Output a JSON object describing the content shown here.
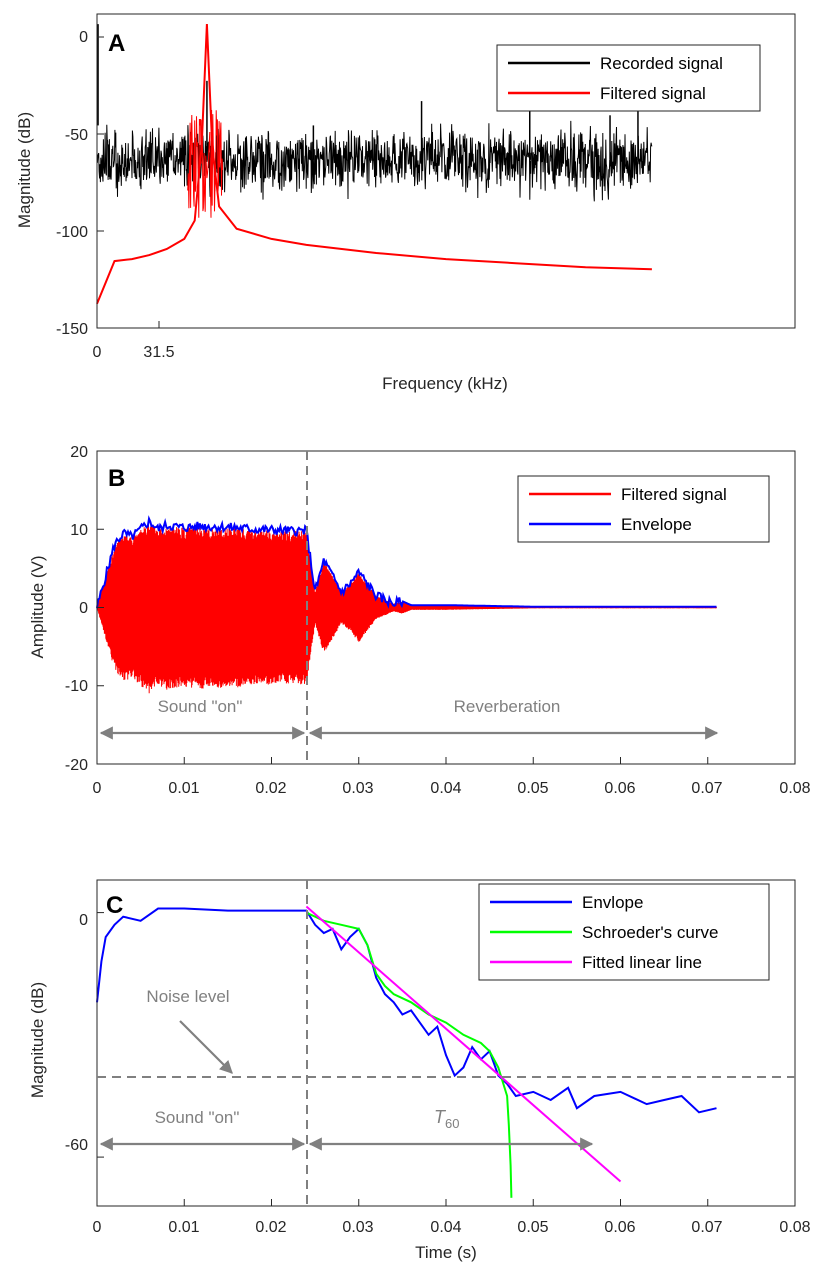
{
  "chart_data": [
    {
      "panel": "A",
      "type": "line",
      "xlabel": "Frequency (kHz)",
      "ylabel": "Magnitude (dB)",
      "xlim": [
        0,
        200
      ],
      "ylim": [
        -150,
        5
      ],
      "xticks": [
        0,
        31.5
      ],
      "xtick_labels": [
        "0",
        "31.5"
      ],
      "yticks": [
        0,
        -50,
        -100,
        -150
      ],
      "ytick_labels": [
        "0",
        "-50",
        "-100",
        "-150"
      ],
      "legend": {
        "position": "top-right",
        "entries": [
          "Recorded signal",
          "Filtered signal"
        ]
      },
      "series": [
        {
          "name": "Recorded signal",
          "color": "#000000",
          "note": "broadband noise floor",
          "band": {
            "x_start": 0,
            "x_end": 159,
            "center": -67,
            "low": -80,
            "high": -52
          },
          "spikes": [
            {
              "x": 31.5,
              "y": -28
            },
            {
              "x": 62,
              "y": -50
            },
            {
              "x": 93,
              "y": -38
            },
            {
              "x": 124,
              "y": -20
            },
            {
              "x": 147,
              "y": -45
            },
            {
              "x": 155,
              "y": -42
            }
          ]
        },
        {
          "name": "Filtered signal",
          "color": "#ff0000",
          "x": [
            0,
            5,
            10,
            15,
            20,
            25,
            28,
            30,
            31.5,
            33,
            35,
            40,
            50,
            60,
            80,
            100,
            120,
            140,
            159
          ],
          "y": [
            -138,
            -117,
            -116,
            -114,
            -111,
            -106,
            -97,
            -60,
            0,
            -60,
            -90,
            -101,
            -106,
            -109,
            -113,
            -116,
            -118,
            -120,
            -121
          ]
        }
      ]
    },
    {
      "panel": "B",
      "type": "line",
      "xlabel": "",
      "ylabel": "Amplitude (V)",
      "xlim": [
        0,
        0.08
      ],
      "ylim": [
        -20,
        20
      ],
      "xticks": [
        0,
        0.01,
        0.02,
        0.03,
        0.04,
        0.05,
        0.06,
        0.07,
        0.08
      ],
      "xtick_labels": [
        "0",
        "0.01",
        "0.02",
        "0.03",
        "0.04",
        "0.05",
        "0.06",
        "0.07",
        "0.08"
      ],
      "yticks": [
        20,
        10,
        0,
        -10,
        -20
      ],
      "ytick_labels": [
        "20",
        "10",
        "0",
        "-10",
        "-20"
      ],
      "legend": {
        "position": "top-right",
        "entries": [
          "Filtered signal",
          "Envelope"
        ]
      },
      "series": [
        {
          "name": "Envelope",
          "color": "#0000ff",
          "x": [
            0,
            0.001,
            0.002,
            0.003,
            0.004,
            0.005,
            0.006,
            0.007,
            0.008,
            0.01,
            0.012,
            0.014,
            0.016,
            0.018,
            0.02,
            0.022,
            0.024,
            0.025,
            0.026,
            0.027,
            0.028,
            0.029,
            0.03,
            0.031,
            0.032,
            0.033,
            0.034,
            0.035,
            0.036,
            0.038,
            0.04,
            0.045,
            0.05,
            0.06,
            0.071
          ],
          "y": [
            0,
            4,
            8,
            9.5,
            9,
            10,
            11,
            10,
            10.5,
            10.2,
            10.4,
            10.3,
            10.2,
            10,
            9.9,
            9.8,
            9.8,
            2,
            6,
            4,
            2,
            3,
            4.5,
            3,
            1.5,
            1,
            0.5,
            0.8,
            0.3,
            0.3,
            0.3,
            0.2,
            0.1,
            0.1,
            0.1
          ]
        },
        {
          "name": "Filtered signal",
          "color": "#ff0000",
          "note": "oscillation symmetric about zero, bounded by the envelope"
        }
      ],
      "annotations": [
        {
          "text": "Sound \"on\"",
          "x_from": 0,
          "x_to": 0.024,
          "y": -16
        },
        {
          "text": "Reverberation",
          "x_from": 0.024,
          "x_to": 0.071,
          "y": -16
        }
      ],
      "reference_lines": [
        {
          "orientation": "vertical",
          "x": 0.024,
          "style": "dashed"
        }
      ]
    },
    {
      "panel": "C",
      "type": "line",
      "xlabel": "Time (s)",
      "ylabel": "Magnitude (dB)",
      "xlim": [
        0,
        0.08
      ],
      "ylim": [
        -72,
        8
      ],
      "xticks": [
        0,
        0.01,
        0.02,
        0.03,
        0.04,
        0.05,
        0.06,
        0.07,
        0.08
      ],
      "xtick_labels": [
        "0",
        "0.01",
        "0.02",
        "0.03",
        "0.04",
        "0.05",
        "0.06",
        "0.07",
        "0.08"
      ],
      "yticks": [
        0,
        -60
      ],
      "ytick_labels": [
        "0",
        "-60"
      ],
      "legend": {
        "position": "top-right",
        "entries": [
          "Envlope",
          "Schroeder's curve",
          "Fitted linear line"
        ]
      },
      "series": [
        {
          "name": "Envlope",
          "color": "#0000ff",
          "x": [
            0,
            0.0005,
            0.001,
            0.002,
            0.003,
            0.005,
            0.007,
            0.01,
            0.015,
            0.02,
            0.024,
            0.025,
            0.026,
            0.027,
            0.028,
            0.029,
            0.03,
            0.031,
            0.032,
            0.033,
            0.034,
            0.035,
            0.036,
            0.037,
            0.038,
            0.039,
            0.04,
            0.041,
            0.042,
            0.043,
            0.044,
            0.045,
            0.046,
            0.047,
            0.048,
            0.05,
            0.052,
            0.054,
            0.055,
            0.057,
            0.06,
            0.063,
            0.065,
            0.067,
            0.069,
            0.071
          ],
          "y": [
            -22,
            -12,
            -6,
            -3,
            -1,
            -2,
            1,
            1,
            0.5,
            0.5,
            0.5,
            -3,
            -5,
            -4,
            -9,
            -6,
            -4,
            -8,
            -16,
            -20,
            -22,
            -25,
            -24,
            -27,
            -30,
            -28,
            -35,
            -40,
            -38,
            -33,
            -36,
            -34,
            -40,
            -42,
            -45,
            -44,
            -46,
            -43,
            -48,
            -45,
            -44,
            -47,
            -46,
            -45,
            -49,
            -48
          ]
        },
        {
          "name": "Schroeder's curve",
          "color": "#00ff00",
          "x": [
            0.024,
            0.026,
            0.028,
            0.03,
            0.031,
            0.032,
            0.033,
            0.034,
            0.036,
            0.038,
            0.04,
            0.042,
            0.044,
            0.045,
            0.046,
            0.047,
            0.0472,
            0.0474,
            0.0475
          ],
          "y": [
            0,
            -2,
            -3,
            -4,
            -8,
            -15,
            -18,
            -20,
            -22,
            -25,
            -27,
            -30,
            -32,
            -34,
            -38,
            -45,
            -52,
            -62,
            -70
          ]
        },
        {
          "name": "Fitted linear line",
          "color": "#ff00ff",
          "x": [
            0.024,
            0.06
          ],
          "y": [
            1.5,
            -66
          ]
        }
      ],
      "annotations": [
        {
          "text": "Noise level",
          "x": 0.009,
          "y": -23
        },
        {
          "text": "Sound \"on\"",
          "x_from": 0,
          "x_to": 0.024,
          "y": -60
        },
        {
          "text": "T",
          "subscript": "60",
          "x_from": 0.024,
          "x_to": 0.057,
          "y": -60
        }
      ],
      "reference_lines": [
        {
          "orientation": "horizontal",
          "y": -41.5,
          "style": "dashed"
        },
        {
          "orientation": "vertical",
          "x": 0.024,
          "style": "dashed"
        }
      ]
    }
  ],
  "panels": [
    {
      "letter": "A",
      "xlabel": "Frequency (kHz)",
      "ylabel": "Magnitude (dB)",
      "xtick_labels": [
        "0",
        "31.5"
      ],
      "ytick_labels": [
        "0",
        "-50",
        "-100",
        "-150"
      ],
      "legend": [
        "Recorded signal",
        "Filtered signal"
      ]
    },
    {
      "letter": "B",
      "xlabel": "",
      "ylabel": "Amplitude (V)",
      "xtick_labels": [
        "0",
        "0.01",
        "0.02",
        "0.03",
        "0.04",
        "0.05",
        "0.06",
        "0.07",
        "0.08"
      ],
      "ytick_labels": [
        "20",
        "10",
        "0",
        "-10",
        "-20"
      ],
      "legend": [
        "Filtered signal",
        "Envelope"
      ],
      "annotations": [
        "Sound \"on\"",
        "Reverberation"
      ]
    },
    {
      "letter": "C",
      "xlabel": "Time (s)",
      "ylabel": "Magnitude (dB)",
      "xtick_labels": [
        "0",
        "0.01",
        "0.02",
        "0.03",
        "0.04",
        "0.05",
        "0.06",
        "0.07",
        "0.08"
      ],
      "ytick_labels": [
        "0",
        "-60"
      ],
      "legend": [
        "Envlope",
        "Schroeder's curve",
        "Fitted linear line"
      ],
      "annotations": [
        "Noise level",
        "Sound \"on\"",
        "T",
        "60"
      ]
    }
  ]
}
